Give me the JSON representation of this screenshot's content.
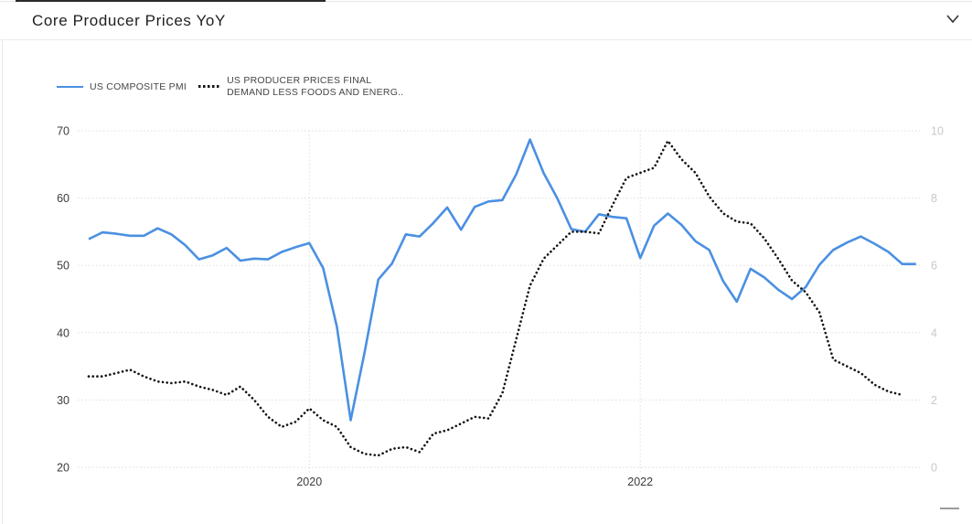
{
  "panel": {
    "title": "Core Producer Prices YoY",
    "collapse_icon": "chevron-down"
  },
  "legend": {
    "items": [
      {
        "label": "US COMPOSITE PMI",
        "style": "solid",
        "color": "#4a90e2"
      },
      {
        "label_line1": "US PRODUCER PRICES FINAL",
        "label_line2": "DEMAND LESS FOODS AND ENERG..",
        "style": "dotted",
        "color": "#141414"
      }
    ]
  },
  "colors": {
    "pmi_line": "#4a90e2",
    "ppi_line": "#141414",
    "grid": "#dddddd",
    "left_axis_labels": "#3c3c3c",
    "right_axis_labels": "#c8c8c8"
  },
  "chart_data": {
    "type": "line",
    "title": "Core Producer Prices YoY",
    "grid": "dotted horizontal lines at left-axis ticks, dotted vertical lines at year ticks",
    "legend_position": "top-left",
    "x_tick_labels": [
      "2020",
      "2022"
    ],
    "x_months": [
      "2018-09",
      "2018-10",
      "2018-11",
      "2018-12",
      "2019-01",
      "2019-02",
      "2019-03",
      "2019-04",
      "2019-05",
      "2019-06",
      "2019-07",
      "2019-08",
      "2019-09",
      "2019-10",
      "2019-11",
      "2019-12",
      "2020-01",
      "2020-02",
      "2020-03",
      "2020-04",
      "2020-05",
      "2020-06",
      "2020-07",
      "2020-08",
      "2020-09",
      "2020-10",
      "2020-11",
      "2020-12",
      "2021-01",
      "2021-02",
      "2021-03",
      "2021-04",
      "2021-05",
      "2021-06",
      "2021-07",
      "2021-08",
      "2021-09",
      "2021-10",
      "2021-11",
      "2021-12",
      "2022-01",
      "2022-02",
      "2022-03",
      "2022-04",
      "2022-05",
      "2022-06",
      "2022-07",
      "2022-08",
      "2022-09",
      "2022-10",
      "2022-11",
      "2022-12",
      "2023-01",
      "2023-02",
      "2023-03",
      "2023-04",
      "2023-05",
      "2023-06",
      "2023-07",
      "2023-08",
      "2023-09"
    ],
    "left_axis": {
      "ticks": [
        70,
        60,
        50,
        40,
        30,
        20
      ],
      "range": [
        20,
        70
      ]
    },
    "right_axis": {
      "ticks": [
        10,
        8,
        6,
        4,
        2,
        0
      ],
      "range": [
        0,
        10
      ]
    },
    "series": [
      {
        "name": "US COMPOSITE PMI",
        "axis": "left",
        "style": "solid",
        "color": "#4a90e2",
        "values": [
          53.9,
          54.9,
          54.7,
          54.4,
          54.4,
          55.5,
          54.6,
          53.0,
          50.9,
          51.5,
          52.6,
          50.7,
          51.0,
          50.9,
          52.0,
          52.7,
          53.3,
          49.6,
          40.9,
          27.0,
          37.0,
          47.9,
          50.3,
          54.6,
          54.3,
          56.3,
          58.6,
          55.3,
          58.7,
          59.5,
          59.7,
          63.5,
          68.7,
          63.7,
          59.9,
          55.4,
          55.0,
          57.6,
          57.2,
          57.0,
          51.1,
          55.9,
          57.7,
          56.0,
          53.6,
          52.3,
          47.7,
          44.6,
          49.5,
          48.2,
          46.4,
          45.0,
          46.8,
          50.1,
          52.3,
          53.4,
          54.3,
          53.2,
          52.0,
          50.2,
          50.2
        ]
      },
      {
        "name": "US PRODUCER PRICES FINAL DEMAND LESS FOODS AND ENERG..",
        "axis": "right",
        "style": "dotted",
        "color": "#141414",
        "values": [
          2.7,
          2.7,
          2.8,
          2.9,
          2.7,
          2.55,
          2.5,
          2.55,
          2.4,
          2.3,
          2.15,
          2.4,
          2.0,
          1.5,
          1.2,
          1.35,
          1.75,
          1.4,
          1.2,
          0.6,
          0.4,
          0.35,
          0.55,
          0.6,
          0.45,
          1.0,
          1.1,
          1.3,
          1.5,
          1.45,
          2.2,
          3.8,
          5.4,
          6.2,
          6.6,
          7.0,
          7.0,
          6.95,
          7.8,
          8.6,
          8.75,
          8.9,
          9.7,
          9.15,
          8.75,
          8.05,
          7.55,
          7.3,
          7.25,
          6.8,
          6.2,
          5.55,
          5.2,
          4.6,
          3.2,
          3.0,
          2.8,
          2.45,
          2.25,
          2.15,
          null
        ]
      }
    ]
  },
  "misc": {
    "resize_handle": "drag-handle"
  }
}
